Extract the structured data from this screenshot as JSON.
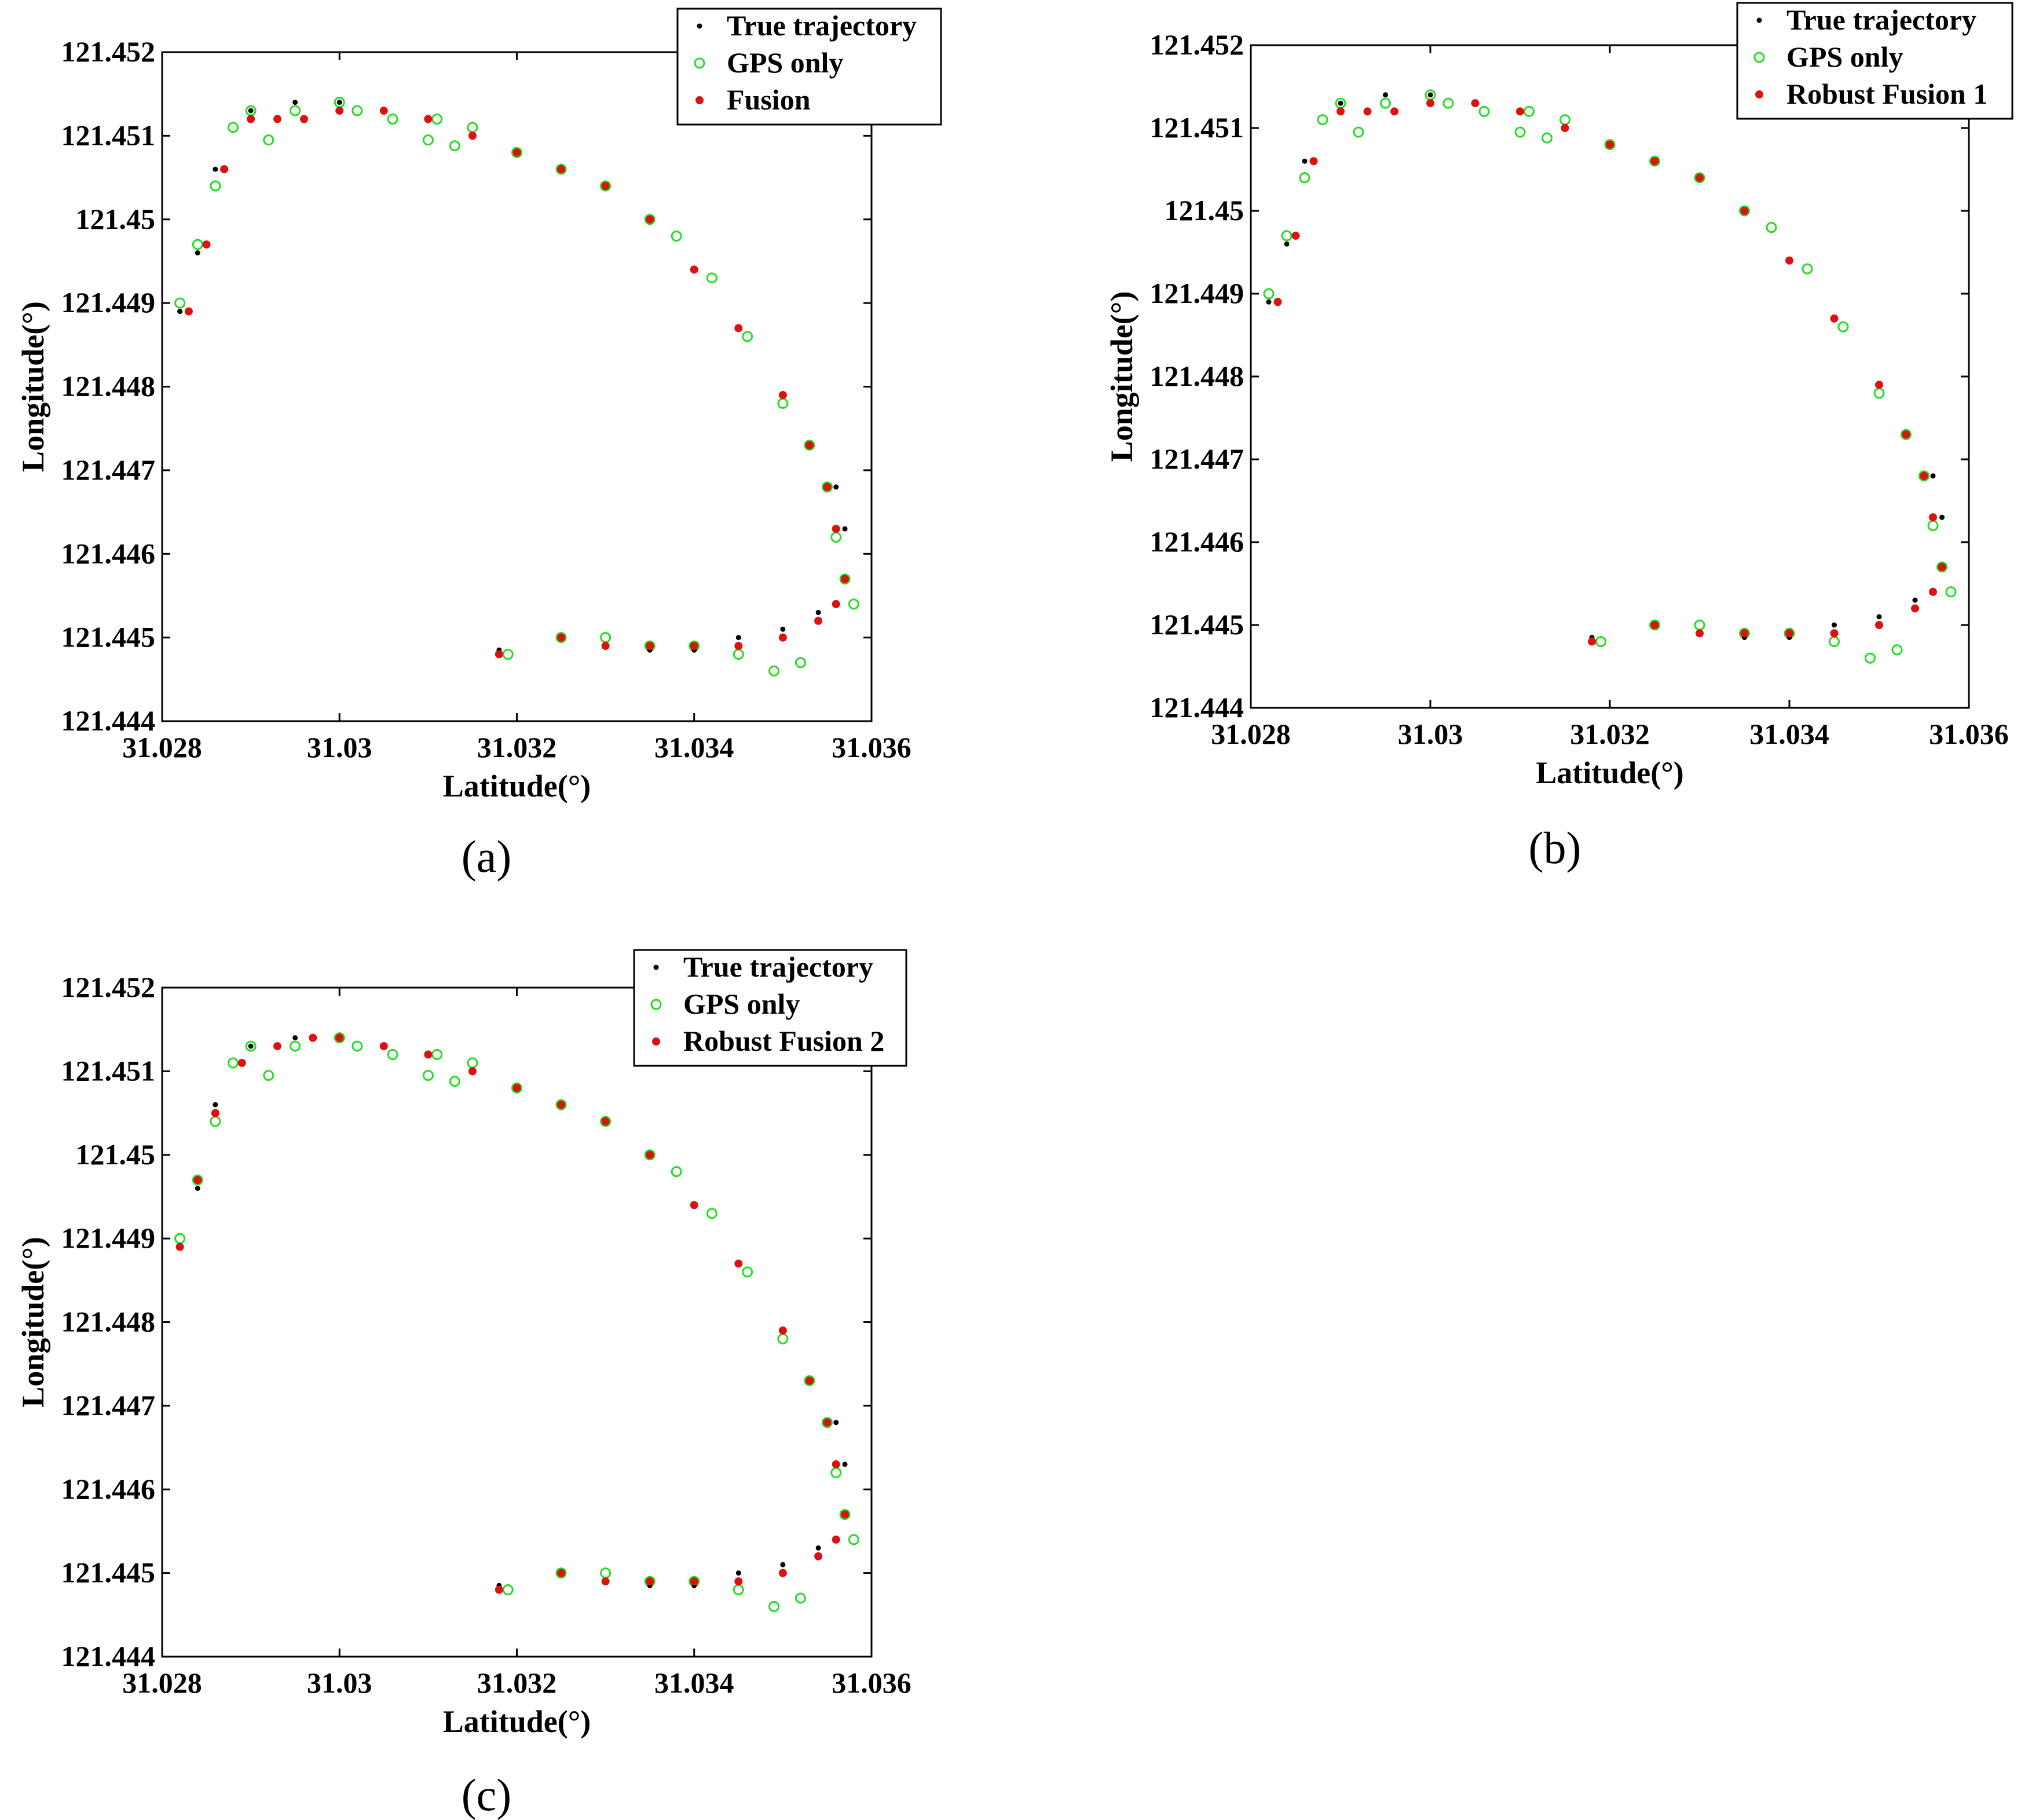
{
  "figure": {
    "panels": [
      {
        "label": "(a)"
      },
      {
        "label": "(b)"
      },
      {
        "label": "(c)"
      }
    ]
  },
  "chart_data": [
    {
      "type": "scatter",
      "xlabel": "Latitude(°)",
      "ylabel": "Longitude(°)",
      "xlim": [
        31.028,
        31.036
      ],
      "ylim": [
        121.444,
        121.452
      ],
      "xticks": [
        "31.028",
        "31.03",
        "31.032",
        "31.034",
        "31.036"
      ],
      "yticks": [
        "121.444",
        "121.445",
        "121.446",
        "121.447",
        "121.448",
        "121.449",
        "121.45",
        "121.451",
        "121.452"
      ],
      "legend_position": "top-right",
      "legend": [
        "True trajectory",
        "GPS only",
        "Fusion"
      ],
      "series": [
        {
          "name": "True trajectory",
          "color": "#000000",
          "marker": "dot",
          "x": [
            31.0282,
            31.0284,
            31.0286,
            31.029,
            31.0295,
            31.03,
            31.0305,
            31.031,
            31.0315,
            31.032,
            31.0325,
            31.033,
            31.0335,
            31.034,
            31.0345,
            31.035,
            31.0353,
            31.0356,
            31.0357,
            31.0357,
            31.0356,
            31.0354,
            31.035,
            31.0345,
            31.034,
            31.0335,
            31.033,
            31.0325,
            31.0318
          ],
          "y": [
            121.4489,
            121.4496,
            121.4506,
            121.4513,
            121.4514,
            121.4514,
            121.4513,
            121.4512,
            121.451,
            121.4508,
            121.4506,
            121.4504,
            121.45,
            121.4494,
            121.4487,
            121.4479,
            121.4473,
            121.4468,
            121.4463,
            121.4457,
            121.4454,
            121.4453,
            121.4451,
            121.445,
            121.44485,
            121.44485,
            121.4449,
            121.445,
            121.44485
          ]
        },
        {
          "name": "GPS only",
          "color": "#22dd22",
          "marker": "circle",
          "x": [
            31.0282,
            31.0284,
            31.0286,
            31.0288,
            31.029,
            31.0292,
            31.0295,
            31.03,
            31.0302,
            31.0306,
            31.031,
            31.0311,
            31.0313,
            31.0315,
            31.032,
            31.0325,
            31.033,
            31.0335,
            31.0338,
            31.0342,
            31.0346,
            31.035,
            31.0353,
            31.0355,
            31.0356,
            31.0357,
            31.0358,
            31.0352,
            31.0349,
            31.0345,
            31.034,
            31.0335,
            31.033,
            31.0325,
            31.0319
          ],
          "y": [
            121.449,
            121.4497,
            121.4504,
            121.4511,
            121.4513,
            121.45095,
            121.4513,
            121.4514,
            121.4513,
            121.4512,
            121.45095,
            121.4512,
            121.45088,
            121.4511,
            121.4508,
            121.4506,
            121.4504,
            121.45,
            121.4498,
            121.4493,
            121.4486,
            121.4478,
            121.4473,
            121.4468,
            121.4462,
            121.4457,
            121.4454,
            121.4447,
            121.4446,
            121.4448,
            121.4449,
            121.4449,
            121.445,
            121.445,
            121.4448
          ]
        },
        {
          "name": "Fusion",
          "color": "#dd1111",
          "marker": "dot",
          "x": [
            31.0283,
            31.0285,
            31.0287,
            31.029,
            31.0293,
            31.0296,
            31.03,
            31.0305,
            31.031,
            31.0315,
            31.032,
            31.0325,
            31.033,
            31.0335,
            31.034,
            31.0345,
            31.035,
            31.0353,
            31.0355,
            31.0356,
            31.0357,
            31.0356,
            31.0354,
            31.035,
            31.0345,
            31.034,
            31.0335,
            31.033,
            31.0325,
            31.0318
          ],
          "y": [
            121.4489,
            121.4497,
            121.4506,
            121.4512,
            121.4512,
            121.4512,
            121.4513,
            121.4513,
            121.4512,
            121.451,
            121.4508,
            121.4506,
            121.4504,
            121.45,
            121.4494,
            121.4487,
            121.4479,
            121.4473,
            121.4468,
            121.4463,
            121.4457,
            121.4454,
            121.4452,
            121.445,
            121.4449,
            121.4449,
            121.4449,
            121.4449,
            121.445,
            121.4448
          ]
        }
      ]
    },
    {
      "type": "scatter",
      "xlabel": "Latitude(°)",
      "ylabel": "Longitude(°)",
      "xlim": [
        31.028,
        31.036
      ],
      "ylim": [
        121.444,
        121.452
      ],
      "xticks": [
        "31.028",
        "31.03",
        "31.032",
        "31.034",
        "31.036"
      ],
      "yticks": [
        "121.444",
        "121.445",
        "121.446",
        "121.447",
        "121.448",
        "121.449",
        "121.45",
        "121.451",
        "121.452"
      ],
      "legend_position": "top-right",
      "legend": [
        "True trajectory",
        "GPS only",
        "Robust Fusion 1"
      ],
      "series": [
        {
          "name": "True trajectory",
          "color": "#000000",
          "marker": "dot",
          "x": [
            31.0282,
            31.0284,
            31.0286,
            31.029,
            31.0295,
            31.03,
            31.0305,
            31.031,
            31.0315,
            31.032,
            31.0325,
            31.033,
            31.0335,
            31.034,
            31.0345,
            31.035,
            31.0353,
            31.0356,
            31.0357,
            31.0357,
            31.0356,
            31.0354,
            31.035,
            31.0345,
            31.034,
            31.0335,
            31.033,
            31.0325,
            31.0318
          ],
          "y": [
            121.4489,
            121.4496,
            121.4506,
            121.4513,
            121.4514,
            121.4514,
            121.4513,
            121.4512,
            121.451,
            121.4508,
            121.4506,
            121.4504,
            121.45,
            121.4494,
            121.4487,
            121.4479,
            121.4473,
            121.4468,
            121.4463,
            121.4457,
            121.4454,
            121.4453,
            121.4451,
            121.445,
            121.44485,
            121.44485,
            121.4449,
            121.445,
            121.44485
          ]
        },
        {
          "name": "GPS only",
          "color": "#22dd22",
          "marker": "circle",
          "x": [
            31.0282,
            31.0284,
            31.0286,
            31.0288,
            31.029,
            31.0292,
            31.0295,
            31.03,
            31.0302,
            31.0306,
            31.031,
            31.0311,
            31.0313,
            31.0315,
            31.032,
            31.0325,
            31.033,
            31.0335,
            31.0338,
            31.0342,
            31.0346,
            31.035,
            31.0353,
            31.0355,
            31.0356,
            31.0357,
            31.0358,
            31.0352,
            31.0349,
            31.0345,
            31.034,
            31.0335,
            31.033,
            31.0325,
            31.0319
          ],
          "y": [
            121.449,
            121.4497,
            121.4504,
            121.4511,
            121.4513,
            121.45095,
            121.4513,
            121.4514,
            121.4513,
            121.4512,
            121.45095,
            121.4512,
            121.45088,
            121.4511,
            121.4508,
            121.4506,
            121.4504,
            121.45,
            121.4498,
            121.4493,
            121.4486,
            121.4478,
            121.4473,
            121.4468,
            121.4462,
            121.4457,
            121.4454,
            121.4447,
            121.4446,
            121.4448,
            121.4449,
            121.4449,
            121.445,
            121.445,
            121.4448
          ]
        },
        {
          "name": "Robust Fusion 1",
          "color": "#dd1111",
          "marker": "dot",
          "x": [
            31.0283,
            31.0285,
            31.0287,
            31.029,
            31.0293,
            31.0296,
            31.03,
            31.0305,
            31.031,
            31.0315,
            31.032,
            31.0325,
            31.033,
            31.0335,
            31.034,
            31.0345,
            31.035,
            31.0353,
            31.0355,
            31.0356,
            31.0357,
            31.0356,
            31.0354,
            31.035,
            31.0345,
            31.034,
            31.0335,
            31.033,
            31.0325,
            31.0318
          ],
          "y": [
            121.4489,
            121.4497,
            121.4506,
            121.4512,
            121.4512,
            121.4512,
            121.4513,
            121.4513,
            121.4512,
            121.451,
            121.4508,
            121.4506,
            121.4504,
            121.45,
            121.4494,
            121.4487,
            121.4479,
            121.4473,
            121.4468,
            121.4463,
            121.4457,
            121.4454,
            121.4452,
            121.445,
            121.4449,
            121.4449,
            121.4449,
            121.4449,
            121.445,
            121.4448
          ]
        }
      ]
    },
    {
      "type": "scatter",
      "xlabel": "Latitude(°)",
      "ylabel": "Longitude(°)",
      "xlim": [
        31.028,
        31.036
      ],
      "ylim": [
        121.444,
        121.452
      ],
      "xticks": [
        "31.028",
        "31.03",
        "31.032",
        "31.034",
        "31.036"
      ],
      "yticks": [
        "121.444",
        "121.445",
        "121.446",
        "121.447",
        "121.448",
        "121.449",
        "121.45",
        "121.451",
        "121.452"
      ],
      "legend_position": "top-right",
      "legend": [
        "True trajectory",
        "GPS only",
        "Robust Fusion 2"
      ],
      "series": [
        {
          "name": "True trajectory",
          "color": "#000000",
          "marker": "dot",
          "x": [
            31.0282,
            31.0284,
            31.0286,
            31.029,
            31.0295,
            31.03,
            31.0305,
            31.031,
            31.0315,
            31.032,
            31.0325,
            31.033,
            31.0335,
            31.034,
            31.0345,
            31.035,
            31.0353,
            31.0356,
            31.0357,
            31.0357,
            31.0356,
            31.0354,
            31.035,
            31.0345,
            31.034,
            31.0335,
            31.033,
            31.0325,
            31.0318
          ],
          "y": [
            121.4489,
            121.4496,
            121.4506,
            121.4513,
            121.4514,
            121.4514,
            121.4513,
            121.4512,
            121.451,
            121.4508,
            121.4506,
            121.4504,
            121.45,
            121.4494,
            121.4487,
            121.4479,
            121.4473,
            121.4468,
            121.4463,
            121.4457,
            121.4454,
            121.4453,
            121.4451,
            121.445,
            121.44485,
            121.44485,
            121.4449,
            121.445,
            121.44485
          ]
        },
        {
          "name": "GPS only",
          "color": "#22dd22",
          "marker": "circle",
          "x": [
            31.0282,
            31.0284,
            31.0286,
            31.0288,
            31.029,
            31.0292,
            31.0295,
            31.03,
            31.0302,
            31.0306,
            31.031,
            31.0311,
            31.0313,
            31.0315,
            31.032,
            31.0325,
            31.033,
            31.0335,
            31.0338,
            31.0342,
            31.0346,
            31.035,
            31.0353,
            31.0355,
            31.0356,
            31.0357,
            31.0358,
            31.0352,
            31.0349,
            31.0345,
            31.034,
            31.0335,
            31.033,
            31.0325,
            31.0319
          ],
          "y": [
            121.449,
            121.4497,
            121.4504,
            121.4511,
            121.4513,
            121.45095,
            121.4513,
            121.4514,
            121.4513,
            121.4512,
            121.45095,
            121.4512,
            121.45088,
            121.4511,
            121.4508,
            121.4506,
            121.4504,
            121.45,
            121.4498,
            121.4493,
            121.4486,
            121.4478,
            121.4473,
            121.4468,
            121.4462,
            121.4457,
            121.4454,
            121.4447,
            121.4446,
            121.4448,
            121.4449,
            121.4449,
            121.445,
            121.445,
            121.4448
          ]
        },
        {
          "name": "Robust Fusion 2",
          "color": "#dd1111",
          "marker": "dot",
          "x": [
            31.0282,
            31.0284,
            31.0286,
            31.0289,
            31.0293,
            31.0297,
            31.03,
            31.0305,
            31.031,
            31.0315,
            31.032,
            31.0325,
            31.033,
            31.0335,
            31.034,
            31.0345,
            31.035,
            31.0353,
            31.0355,
            31.0356,
            31.0357,
            31.0356,
            31.0354,
            31.035,
            31.0345,
            31.034,
            31.0335,
            31.033,
            31.0325,
            31.0318
          ],
          "y": [
            121.4489,
            121.4497,
            121.4505,
            121.4511,
            121.4513,
            121.4514,
            121.4514,
            121.4513,
            121.4512,
            121.451,
            121.4508,
            121.4506,
            121.4504,
            121.45,
            121.4494,
            121.4487,
            121.4479,
            121.4473,
            121.4468,
            121.4463,
            121.4457,
            121.4454,
            121.4452,
            121.445,
            121.4449,
            121.4449,
            121.4449,
            121.4449,
            121.445,
            121.4448
          ]
        }
      ]
    }
  ]
}
